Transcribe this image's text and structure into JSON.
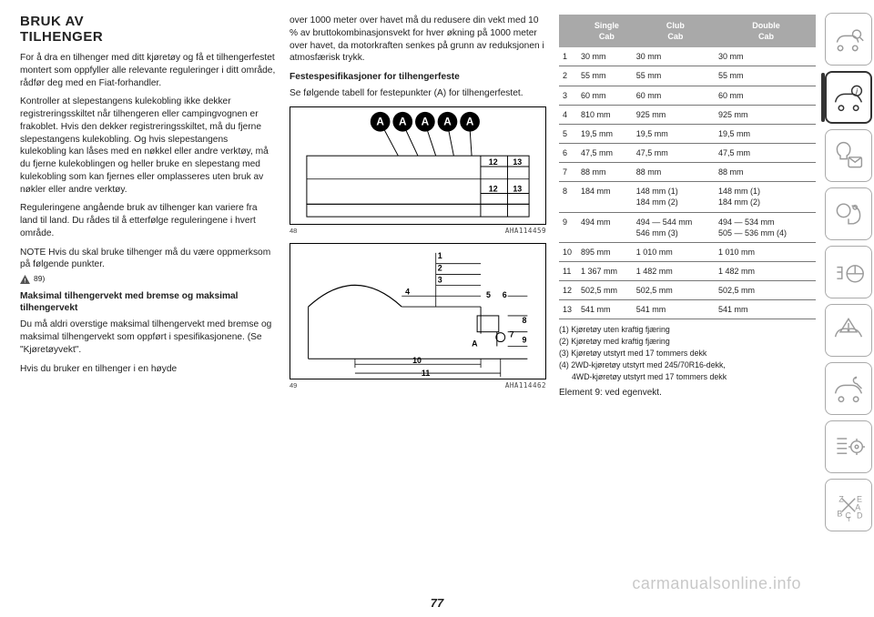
{
  "col1": {
    "heading_l1": "BRUK AV",
    "heading_l2": "TILHENGER",
    "p1": "For å dra en tilhenger med ditt kjøretøy og få et tilhengerfestet montert som oppfyller alle relevante reguleringer i ditt område, rådfør deg med en Fiat-forhandler.",
    "p2": "Kontroller at slepestangens kulekobling ikke dekker registreringsskiltet når tilhengeren eller campingvognen er frakoblet. Hvis den dekker registreringsskiltet, må du fjerne slepestangens kulekobling. Og hvis slepestangens kulekobling kan låses med en nøkkel eller andre verktøy, må du fjerne kulekoblingen og heller bruke en slepestang med kulekobling som kan fjernes eller omplasseres uten bruk av nøkler eller andre verktøy.",
    "p3": "Reguleringene angående bruk av tilhenger kan variere fra land til land. Du rådes til å etterfølge reguleringene i hvert område.",
    "note_prefix": "NOTE",
    "note_body": "Hvis du skal bruke tilhenger må du være oppmerksom på følgende punkter.",
    "warn_ref": "89)",
    "sub1": "Maksimal tilhengervekt med bremse og maksimal tilhengervekt",
    "p4": "Du må aldri overstige maksimal tilhengervekt med bremse og maksimal tilhengervekt som oppført i spesifikasjonene. (Se \"Kjøretøyvekt\".",
    "p5": "Hvis du bruker en tilhenger i en høyde"
  },
  "col2": {
    "p1": "over 1000 meter over havet må du redusere din vekt med 10 % av bruttokombinasjonsvekt for hver økning på 1000 meter over havet, da motorkraften senkes på grunn av reduksjonen i atmosfærisk trykk.",
    "sub1": "Festespesifikasjoner for tilhengerfeste",
    "p2": "Se følgende tabell for festepunkter (A) for tilhengerfestet.",
    "fig48": {
      "num": "48",
      "code": "AHA114459",
      "labels": [
        "A",
        "A",
        "A",
        "A",
        "A"
      ],
      "dims": [
        "12",
        "13",
        "12",
        "13"
      ]
    },
    "fig49": {
      "num": "49",
      "code": "AHA114462",
      "labels": {
        "1": "1",
        "2": "2",
        "3": "3",
        "4": "4",
        "5": "5",
        "6": "6",
        "7": "7",
        "8": "8",
        "9": "9",
        "10": "10",
        "11": "11",
        "A": "A"
      }
    }
  },
  "table": {
    "headers": [
      "",
      "Single Cab",
      "Club Cab",
      "Double Cab"
    ],
    "rows": [
      [
        "1",
        "30 mm",
        "30 mm",
        "30 mm"
      ],
      [
        "2",
        "55 mm",
        "55 mm",
        "55 mm"
      ],
      [
        "3",
        "60 mm",
        "60 mm",
        "60 mm"
      ],
      [
        "4",
        "810 mm",
        "925 mm",
        "925 mm"
      ],
      [
        "5",
        "19,5 mm",
        "19,5 mm",
        "19,5 mm"
      ],
      [
        "6",
        "47,5 mm",
        "47,5 mm",
        "47,5 mm"
      ],
      [
        "7",
        "88 mm",
        "88 mm",
        "88 mm"
      ],
      [
        "8",
        "184 mm",
        "148 mm (1)\n184 mm (2)",
        "148 mm (1)\n184 mm (2)"
      ],
      [
        "9",
        "494 mm",
        "494 — 544 mm\n546 mm (3)",
        "494 — 534 mm\n505 — 536 mm (4)"
      ],
      [
        "10",
        "895 mm",
        "1 010 mm",
        "1 010 mm"
      ],
      [
        "11",
        "1 367 mm",
        "1 482 mm",
        "1 482 mm"
      ],
      [
        "12",
        "502,5 mm",
        "502,5 mm",
        "502,5 mm"
      ],
      [
        "13",
        "541 mm",
        "541 mm",
        "541 mm"
      ]
    ],
    "notes": [
      "(1) Kjøretøy uten kraftig fjæring",
      "(2) Kjøretøy med kraftig fjæring",
      "(3) Kjøretøy utstyrt med 17 tommers dekk",
      "(4) 2WD-kjøretøy utstyrt med 245/70R16-dekk,",
      "4WD-kjøretøy utstyrt med 17 tommers dekk"
    ],
    "after": "Element 9: ved egenvekt."
  },
  "pagenum": "77",
  "watermark": "carmanualsonline.info"
}
